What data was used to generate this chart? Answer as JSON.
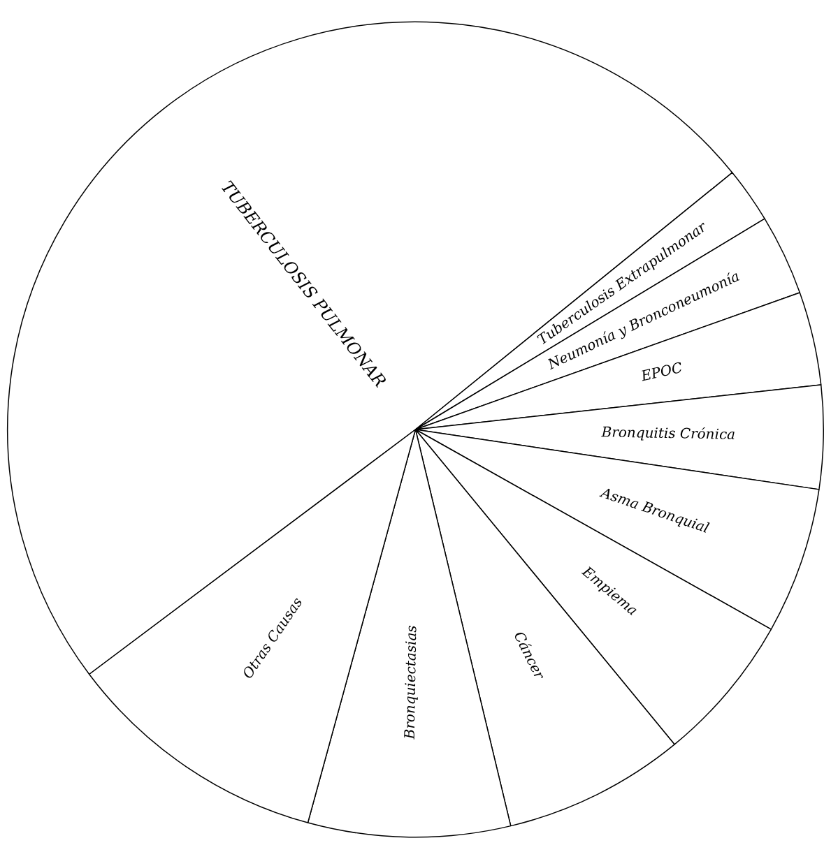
{
  "chart_data": {
    "type": "pie",
    "categories": [
      "TUBERCULOSIS PULMONAR",
      "Tuberculosis Extrapulmonar",
      "Neumonía y Bronconeumonía",
      "EPOC",
      "Bronquitis Crónica",
      "Asma Bronquial",
      "Empiema",
      "Cáncer",
      "Bronquiectasias",
      "Otras Causas"
    ],
    "values": [
      49.4,
      2.2,
      3.2,
      3.7,
      4.1,
      5.8,
      5.9,
      7.2,
      8.0,
      10.5
    ],
    "colors": [
      "#ffffff",
      "#ffffff",
      "#ffffff",
      "#ffffff",
      "#ffffff",
      "#ffffff",
      "#ffffff",
      "#ffffff",
      "#ffffff",
      "#ffffff"
    ],
    "legend": false
  }
}
